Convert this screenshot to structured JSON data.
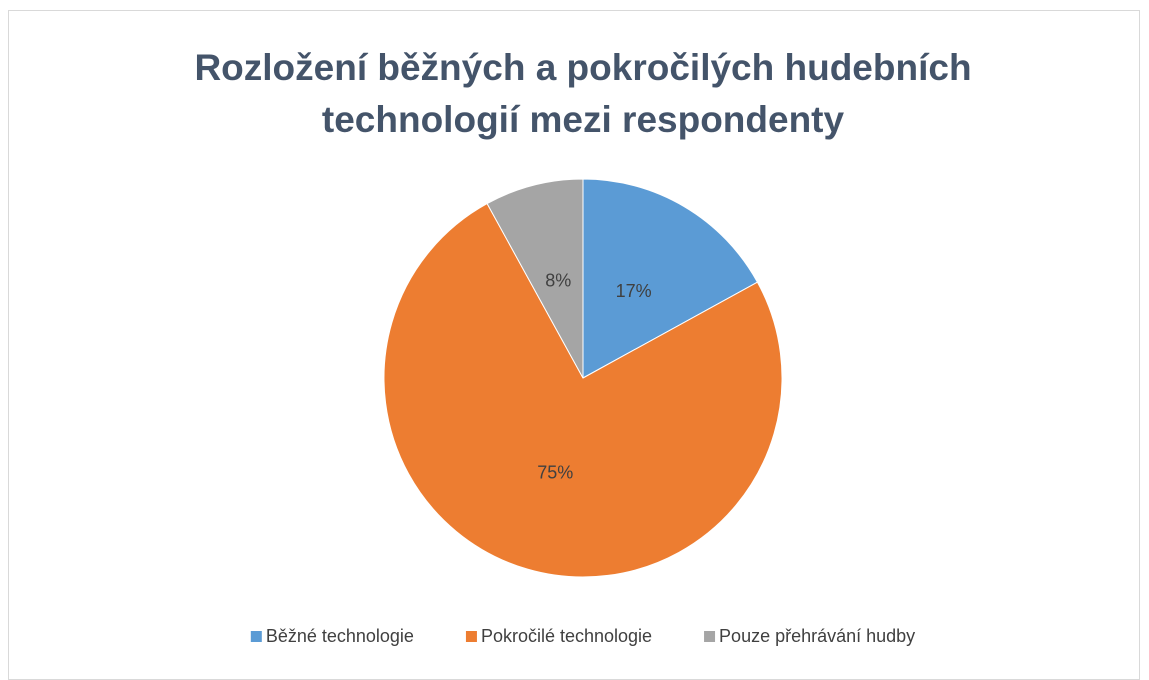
{
  "chart_data": {
    "type": "pie",
    "title": "Rozložení běžných a pokročilých hudebních technologií mezi respondenty",
    "categories": [
      "Běžné technologie",
      "Pokročilé technologie",
      "Pouze přehrávání hudby"
    ],
    "values": [
      17,
      75,
      8
    ],
    "value_labels": [
      "17%",
      "75%",
      "8%"
    ],
    "colors": [
      "#5b9bd5",
      "#ed7d31",
      "#a5a5a5"
    ],
    "legend": "bottom"
  }
}
